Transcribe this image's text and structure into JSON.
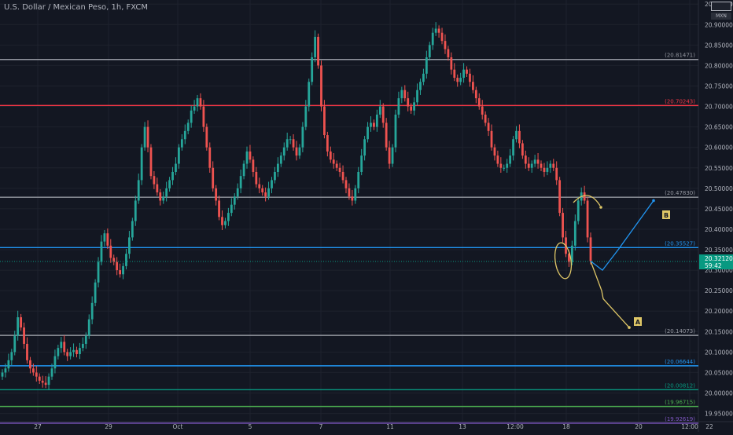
{
  "header": {
    "symbol_title": "U.S. Dollar / Mexican Peso, 1h, FXCM",
    "currency": "MXN"
  },
  "colors": {
    "background": "#131722",
    "grid": "#1e222d",
    "axis_text": "#b2b5be",
    "candle_up": "#26a69a",
    "candle_down": "#ef5350",
    "level_gray": "#9598a1",
    "level_red": "#f23645",
    "level_blue": "#2196f3",
    "level_green": "#089981",
    "level_lime": "#4caf50",
    "level_purple": "#7e57c2",
    "projection_yellow": "#dfc767",
    "projection_blue": "#2196f3",
    "price_tag_bg": "#089981"
  },
  "chart_data": {
    "type": "candlestick",
    "symbol": "U.S. Dollar / Mexican Peso",
    "interval": "1h",
    "source": "FXCM",
    "ylim": [
      19.93,
      20.96
    ],
    "y_ticks": [
      "20.95000",
      "20.90000",
      "20.85000",
      "20.80000",
      "20.75000",
      "20.70000",
      "20.65000",
      "20.60000",
      "20.55000",
      "20.50000",
      "20.45000",
      "20.40000",
      "20.35000",
      "20.30000",
      "20.25000",
      "20.20000",
      "20.15000",
      "20.10000",
      "20.05000",
      "20.00000",
      "19.95000"
    ],
    "x_ticks": [
      "27",
      "29",
      "Oct",
      "5",
      "7",
      "11",
      "13",
      "12:00",
      "18",
      "20",
      "22",
      "12:00"
    ],
    "close_series": [
      20.05,
      20.06,
      20.08,
      20.1,
      20.14,
      20.185,
      20.16,
      20.12,
      20.08,
      20.06,
      20.05,
      20.04,
      20.03,
      20.025,
      20.02,
      20.04,
      20.06,
      20.09,
      20.11,
      20.125,
      20.1,
      20.09,
      20.1,
      20.105,
      20.095,
      20.11,
      20.12,
      20.14,
      20.18,
      20.22,
      20.27,
      20.32,
      20.37,
      20.39,
      20.36,
      20.33,
      20.32,
      20.3,
      20.29,
      20.31,
      20.34,
      20.38,
      20.42,
      20.47,
      20.52,
      20.6,
      20.65,
      20.6,
      20.53,
      20.51,
      20.49,
      20.47,
      20.48,
      20.5,
      20.52,
      20.54,
      20.56,
      20.6,
      20.62,
      20.64,
      20.66,
      20.69,
      20.7,
      20.72,
      20.7,
      20.65,
      20.6,
      20.55,
      20.5,
      20.47,
      20.43,
      20.41,
      20.42,
      20.44,
      20.46,
      20.48,
      20.5,
      20.53,
      20.56,
      20.59,
      20.57,
      20.54,
      20.51,
      20.5,
      20.49,
      20.48,
      20.5,
      20.52,
      20.54,
      20.56,
      20.58,
      20.6,
      20.62,
      20.62,
      20.6,
      20.58,
      20.6,
      20.65,
      20.7,
      20.76,
      20.82,
      20.87,
      20.8,
      20.7,
      20.63,
      20.59,
      20.57,
      20.56,
      20.55,
      20.54,
      20.52,
      20.5,
      20.48,
      20.47,
      20.5,
      20.54,
      20.58,
      20.62,
      20.65,
      20.66,
      20.65,
      20.68,
      20.7,
      20.66,
      20.6,
      20.56,
      20.6,
      20.68,
      20.72,
      20.74,
      20.72,
      20.7,
      20.69,
      20.71,
      20.74,
      20.76,
      20.78,
      20.82,
      20.85,
      20.88,
      20.89,
      20.88,
      20.86,
      20.84,
      20.82,
      20.79,
      20.77,
      20.76,
      20.77,
      20.79,
      20.78,
      20.76,
      20.74,
      20.72,
      20.7,
      20.68,
      20.66,
      20.64,
      20.6,
      20.58,
      20.56,
      20.55,
      20.55,
      20.56,
      20.58,
      20.62,
      20.64,
      20.61,
      20.58,
      20.56,
      20.55,
      20.56,
      20.57,
      20.56,
      20.55,
      20.54,
      20.55,
      20.56,
      20.55,
      20.52,
      20.44,
      20.38,
      20.34,
      20.32,
      20.36,
      20.42,
      20.47,
      20.49,
      20.47,
      20.38,
      20.322
    ],
    "levels": [
      {
        "label": "20.81471",
        "value": 20.81471,
        "color": "#9598a1"
      },
      {
        "label": "20.70243",
        "value": 20.70243,
        "color": "#f23645"
      },
      {
        "label": "20.47830",
        "value": 20.4783,
        "color": "#9598a1"
      },
      {
        "label": "20.35527",
        "value": 20.35527,
        "color": "#2196f3"
      },
      {
        "label": "20.14073",
        "value": 20.14073,
        "color": "#9598a1"
      },
      {
        "label": "20.06644",
        "value": 20.06644,
        "color": "#2196f3"
      },
      {
        "label": "20.00812",
        "value": 20.00812,
        "color": "#089981"
      },
      {
        "label": "19.96715",
        "value": 19.96715,
        "color": "#4caf50"
      },
      {
        "label": "19.92619",
        "value": 19.92619,
        "color": "#7e57c2"
      }
    ],
    "current_price": {
      "value": 20.3212,
      "label": "20.32120",
      "countdown": "59:42"
    },
    "projections": [
      {
        "label": "A",
        "color": "#dfc767",
        "points": [
          [
            20.322,
            20.25
          ],
          [
            20.3,
            20.23
          ],
          [
            20.26,
            20.16
          ]
        ]
      },
      {
        "label": "B",
        "color": "#2196f3",
        "points": [
          [
            20.322,
            20.3
          ],
          [
            20.36,
            20.35
          ],
          [
            20.48,
            20.47
          ]
        ]
      }
    ],
    "annotations": [
      {
        "type": "ellipse",
        "color": "#dfc767",
        "note": "bottom"
      },
      {
        "type": "arc-arrow",
        "color": "#dfc767",
        "note": "top"
      }
    ]
  }
}
